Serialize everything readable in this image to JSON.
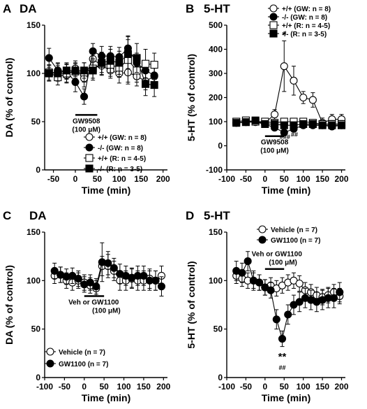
{
  "chart_data": [
    {
      "panel": "A",
      "type": "line",
      "title": "DA",
      "xlabel": "Time (min)",
      "ylabel": "DA (% of control)",
      "xlim": [
        -70,
        210
      ],
      "ylim": [
        0,
        150
      ],
      "xticks": [
        -50,
        0,
        50,
        100,
        150,
        200
      ],
      "yticks": [
        0,
        50,
        100,
        150
      ],
      "legend_position": "bottom-right",
      "series": [
        {
          "name": "+/+ (GW: n = 8)",
          "marker": "circle",
          "fill": "white",
          "size": 8,
          "x": [
            -60,
            -40,
            -20,
            0,
            20,
            40,
            60,
            80,
            100,
            120,
            140,
            160,
            180
          ],
          "y": [
            100,
            102,
            98,
            105,
            95,
            115,
            108,
            103,
            100,
            101,
            97,
            92,
            97
          ],
          "err": [
            8,
            8,
            8,
            8,
            9,
            10,
            9,
            8,
            10,
            10,
            10,
            9,
            10
          ]
        },
        {
          "name": "-/- (GW: n = 8)",
          "marker": "circle",
          "fill": "black",
          "size": 8,
          "x": [
            -60,
            -40,
            -20,
            0,
            20,
            40,
            60,
            80,
            100,
            120,
            140,
            160,
            180
          ],
          "y": [
            116,
            103,
            102,
            91,
            76,
            123,
            118,
            118,
            117,
            126,
            111,
            103,
            98
          ],
          "err": [
            10,
            8,
            8,
            10,
            8,
            8,
            10,
            10,
            10,
            12,
            10,
            10,
            10
          ]
        },
        {
          "name": "+/+ (R: n = 4-5)",
          "marker": "square",
          "fill": "white",
          "size": 8,
          "x": [
            -60,
            -40,
            -20,
            0,
            20,
            40,
            60,
            80,
            100,
            120,
            140,
            160,
            180
          ],
          "y": [
            101,
            96,
            100,
            102,
            101,
            105,
            110,
            109,
            106,
            114,
            103,
            110,
            109
          ],
          "err": [
            8,
            8,
            9,
            8,
            10,
            10,
            12,
            12,
            10,
            25,
            12,
            15,
            12
          ]
        },
        {
          "name": "-/- (R: n = 3-5)",
          "marker": "square",
          "fill": "black",
          "size": 8,
          "x": [
            -60,
            -40,
            -20,
            0,
            20,
            40,
            60,
            80,
            100,
            120,
            140,
            160,
            180
          ],
          "y": [
            100,
            100,
            103,
            103,
            103,
            103,
            111,
            113,
            111,
            120,
            116,
            89,
            88
          ],
          "err": [
            8,
            8,
            8,
            8,
            8,
            10,
            10,
            12,
            12,
            15,
            15,
            12,
            12
          ]
        }
      ],
      "bar": {
        "x": [
          0,
          50
        ],
        "label1": "GW9508",
        "label2": "(100 μM)"
      }
    },
    {
      "panel": "B",
      "type": "line",
      "title": "5-HT",
      "xlabel": "Time (min)",
      "ylabel": "5-HT (% of control)",
      "xlim": [
        -100,
        210
      ],
      "ylim": [
        -100,
        500
      ],
      "xticks": [
        -100,
        -50,
        0,
        50,
        100,
        150,
        200
      ],
      "yticks": [
        -100,
        0,
        100,
        200,
        300,
        400,
        500
      ],
      "legend_position": "top-right",
      "series": [
        {
          "name": "+/+ (GW: n = 8)",
          "marker": "circle",
          "fill": "white",
          "size": 8,
          "x": [
            -75,
            -50,
            -25,
            0,
            25,
            50,
            75,
            100,
            125,
            150,
            175,
            200
          ],
          "y": [
            95,
            100,
            100,
            95,
            130,
            330,
            270,
            200,
            190,
            95,
            110,
            110
          ],
          "err": [
            10,
            10,
            10,
            12,
            20,
            105,
            60,
            25,
            30,
            20,
            20,
            20
          ]
        },
        {
          "name": "-/- (GW: n = 8)",
          "marker": "circle",
          "fill": "black",
          "size": 8,
          "x": [
            -75,
            -50,
            -25,
            0,
            25,
            50,
            75,
            100,
            125,
            150,
            175,
            200
          ],
          "y": [
            95,
            98,
            98,
            90,
            75,
            55,
            70,
            85,
            85,
            85,
            80,
            85
          ],
          "err": [
            10,
            8,
            8,
            10,
            10,
            10,
            10,
            10,
            10,
            10,
            10,
            10
          ]
        },
        {
          "name": "+/+ (R: n = 4-5)",
          "marker": "square",
          "fill": "white",
          "size": 8,
          "x": [
            -75,
            -50,
            -25,
            0,
            25,
            50,
            75,
            100,
            125,
            150,
            175,
            200
          ],
          "y": [
            100,
            105,
            100,
            100,
            95,
            100,
            100,
            100,
            95,
            90,
            90,
            90
          ],
          "err": [
            12,
            12,
            12,
            12,
            12,
            12,
            12,
            12,
            12,
            15,
            15,
            15
          ]
        },
        {
          "name": "-/- (R: n = 3-5)",
          "marker": "square",
          "fill": "black",
          "size": 8,
          "x": [
            -75,
            -50,
            -25,
            0,
            25,
            50,
            75,
            100,
            125,
            150,
            175,
            200
          ],
          "y": [
            95,
            98,
            105,
            90,
            90,
            85,
            85,
            90,
            90,
            85,
            85,
            85
          ],
          "err": [
            10,
            10,
            10,
            10,
            10,
            10,
            10,
            10,
            10,
            10,
            10,
            10
          ]
        }
      ],
      "bar": {
        "x": [
          0,
          50
        ],
        "label1": "GW9508",
        "label2": "(100 μM)"
      },
      "annotations": [
        {
          "text": "*",
          "x": 50,
          "y": 445,
          "cls": "star"
        },
        {
          "text": "###",
          "x": 52,
          "y": 28,
          "cls": "hash"
        },
        {
          "text": "##",
          "x": 77,
          "y": 37,
          "cls": "hash"
        }
      ]
    },
    {
      "panel": "C",
      "type": "line",
      "title": "DA",
      "xlabel": "Time (min)",
      "ylabel": "DA (% of control)",
      "xlim": [
        -100,
        210
      ],
      "ylim": [
        0,
        150
      ],
      "xticks": [
        -100,
        -50,
        0,
        50,
        100,
        150,
        200
      ],
      "yticks": [
        0,
        50,
        100,
        150
      ],
      "legend_position": "bottom-left",
      "series": [
        {
          "name": "Vehicle (n = 7)",
          "marker": "circle",
          "fill": "white",
          "size": 8,
          "x": [
            -75,
            -60,
            -45,
            -30,
            -15,
            0,
            15,
            30,
            45,
            60,
            75,
            90,
            105,
            120,
            135,
            150,
            165,
            180,
            195
          ],
          "y": [
            105,
            106,
            100,
            98,
            100,
            98,
            95,
            92,
            115,
            115,
            110,
            100,
            100,
            102,
            100,
            100,
            102,
            100,
            105
          ],
          "err": [
            8,
            8,
            8,
            8,
            8,
            8,
            8,
            8,
            10,
            12,
            10,
            10,
            10,
            10,
            10,
            10,
            10,
            10,
            10
          ]
        },
        {
          "name": "GW1100 (n = 7)",
          "marker": "circle",
          "fill": "black",
          "size": 8,
          "x": [
            -75,
            -60,
            -45,
            -30,
            -15,
            0,
            15,
            30,
            45,
            60,
            75,
            90,
            105,
            120,
            135,
            150,
            165,
            180,
            195
          ],
          "y": [
            110,
            106,
            104,
            105,
            102,
            96,
            98,
            94,
            119,
            118,
            113,
            107,
            105,
            103,
            105,
            105,
            100,
            100,
            94
          ],
          "err": [
            8,
            8,
            8,
            8,
            8,
            8,
            8,
            8,
            20,
            12,
            10,
            10,
            10,
            10,
            10,
            10,
            10,
            10,
            10
          ]
        }
      ],
      "bar": {
        "x": [
          0,
          50
        ],
        "label1": "Veh or GW1100",
        "label2": "(100 μM)"
      }
    },
    {
      "panel": "D",
      "type": "line",
      "title": "5-HT",
      "xlabel": "Time (min)",
      "ylabel": "5-HT (% of control)",
      "xlim": [
        -100,
        210
      ],
      "ylim": [
        0,
        150
      ],
      "xticks": [
        -100,
        -50,
        0,
        50,
        100,
        150,
        200
      ],
      "yticks": [
        0,
        50,
        100,
        150
      ],
      "legend_position": "top-right",
      "series": [
        {
          "name": "Vehicle (n = 7)",
          "marker": "circle",
          "fill": "white",
          "size": 8,
          "x": [
            -75,
            -60,
            -45,
            -30,
            -15,
            0,
            15,
            30,
            45,
            60,
            75,
            90,
            105,
            120,
            135,
            150,
            165,
            180,
            195
          ],
          "y": [
            105,
            102,
            100,
            100,
            98,
            93,
            95,
            92,
            95,
            98,
            100,
            97,
            90,
            88,
            85,
            83,
            85,
            88,
            84
          ],
          "err": [
            8,
            8,
            8,
            8,
            8,
            8,
            8,
            8,
            8,
            8,
            8,
            8,
            8,
            8,
            8,
            8,
            8,
            8,
            8
          ]
        },
        {
          "name": "GW1100 (n = 7)",
          "marker": "circle",
          "fill": "black",
          "size": 8,
          "x": [
            -75,
            -60,
            -45,
            -30,
            -15,
            0,
            15,
            30,
            45,
            60,
            75,
            90,
            105,
            120,
            135,
            150,
            165,
            180,
            195
          ],
          "y": [
            110,
            108,
            120,
            100,
            98,
            93,
            90,
            60,
            40,
            65,
            75,
            78,
            82,
            80,
            78,
            80,
            82,
            82,
            88
          ],
          "err": [
            10,
            10,
            10,
            10,
            8,
            8,
            8,
            10,
            8,
            10,
            10,
            10,
            10,
            10,
            10,
            10,
            10,
            10,
            10
          ]
        }
      ],
      "bar": {
        "x": [
          0,
          50
        ],
        "label1": "Veh or GW1100",
        "label2": "(100 μM)"
      },
      "annotations": [
        {
          "text": "**",
          "x": 45,
          "y": 18,
          "cls": "star"
        },
        {
          "text": "##",
          "x": 45,
          "y": 8,
          "cls": "hash"
        }
      ]
    }
  ]
}
